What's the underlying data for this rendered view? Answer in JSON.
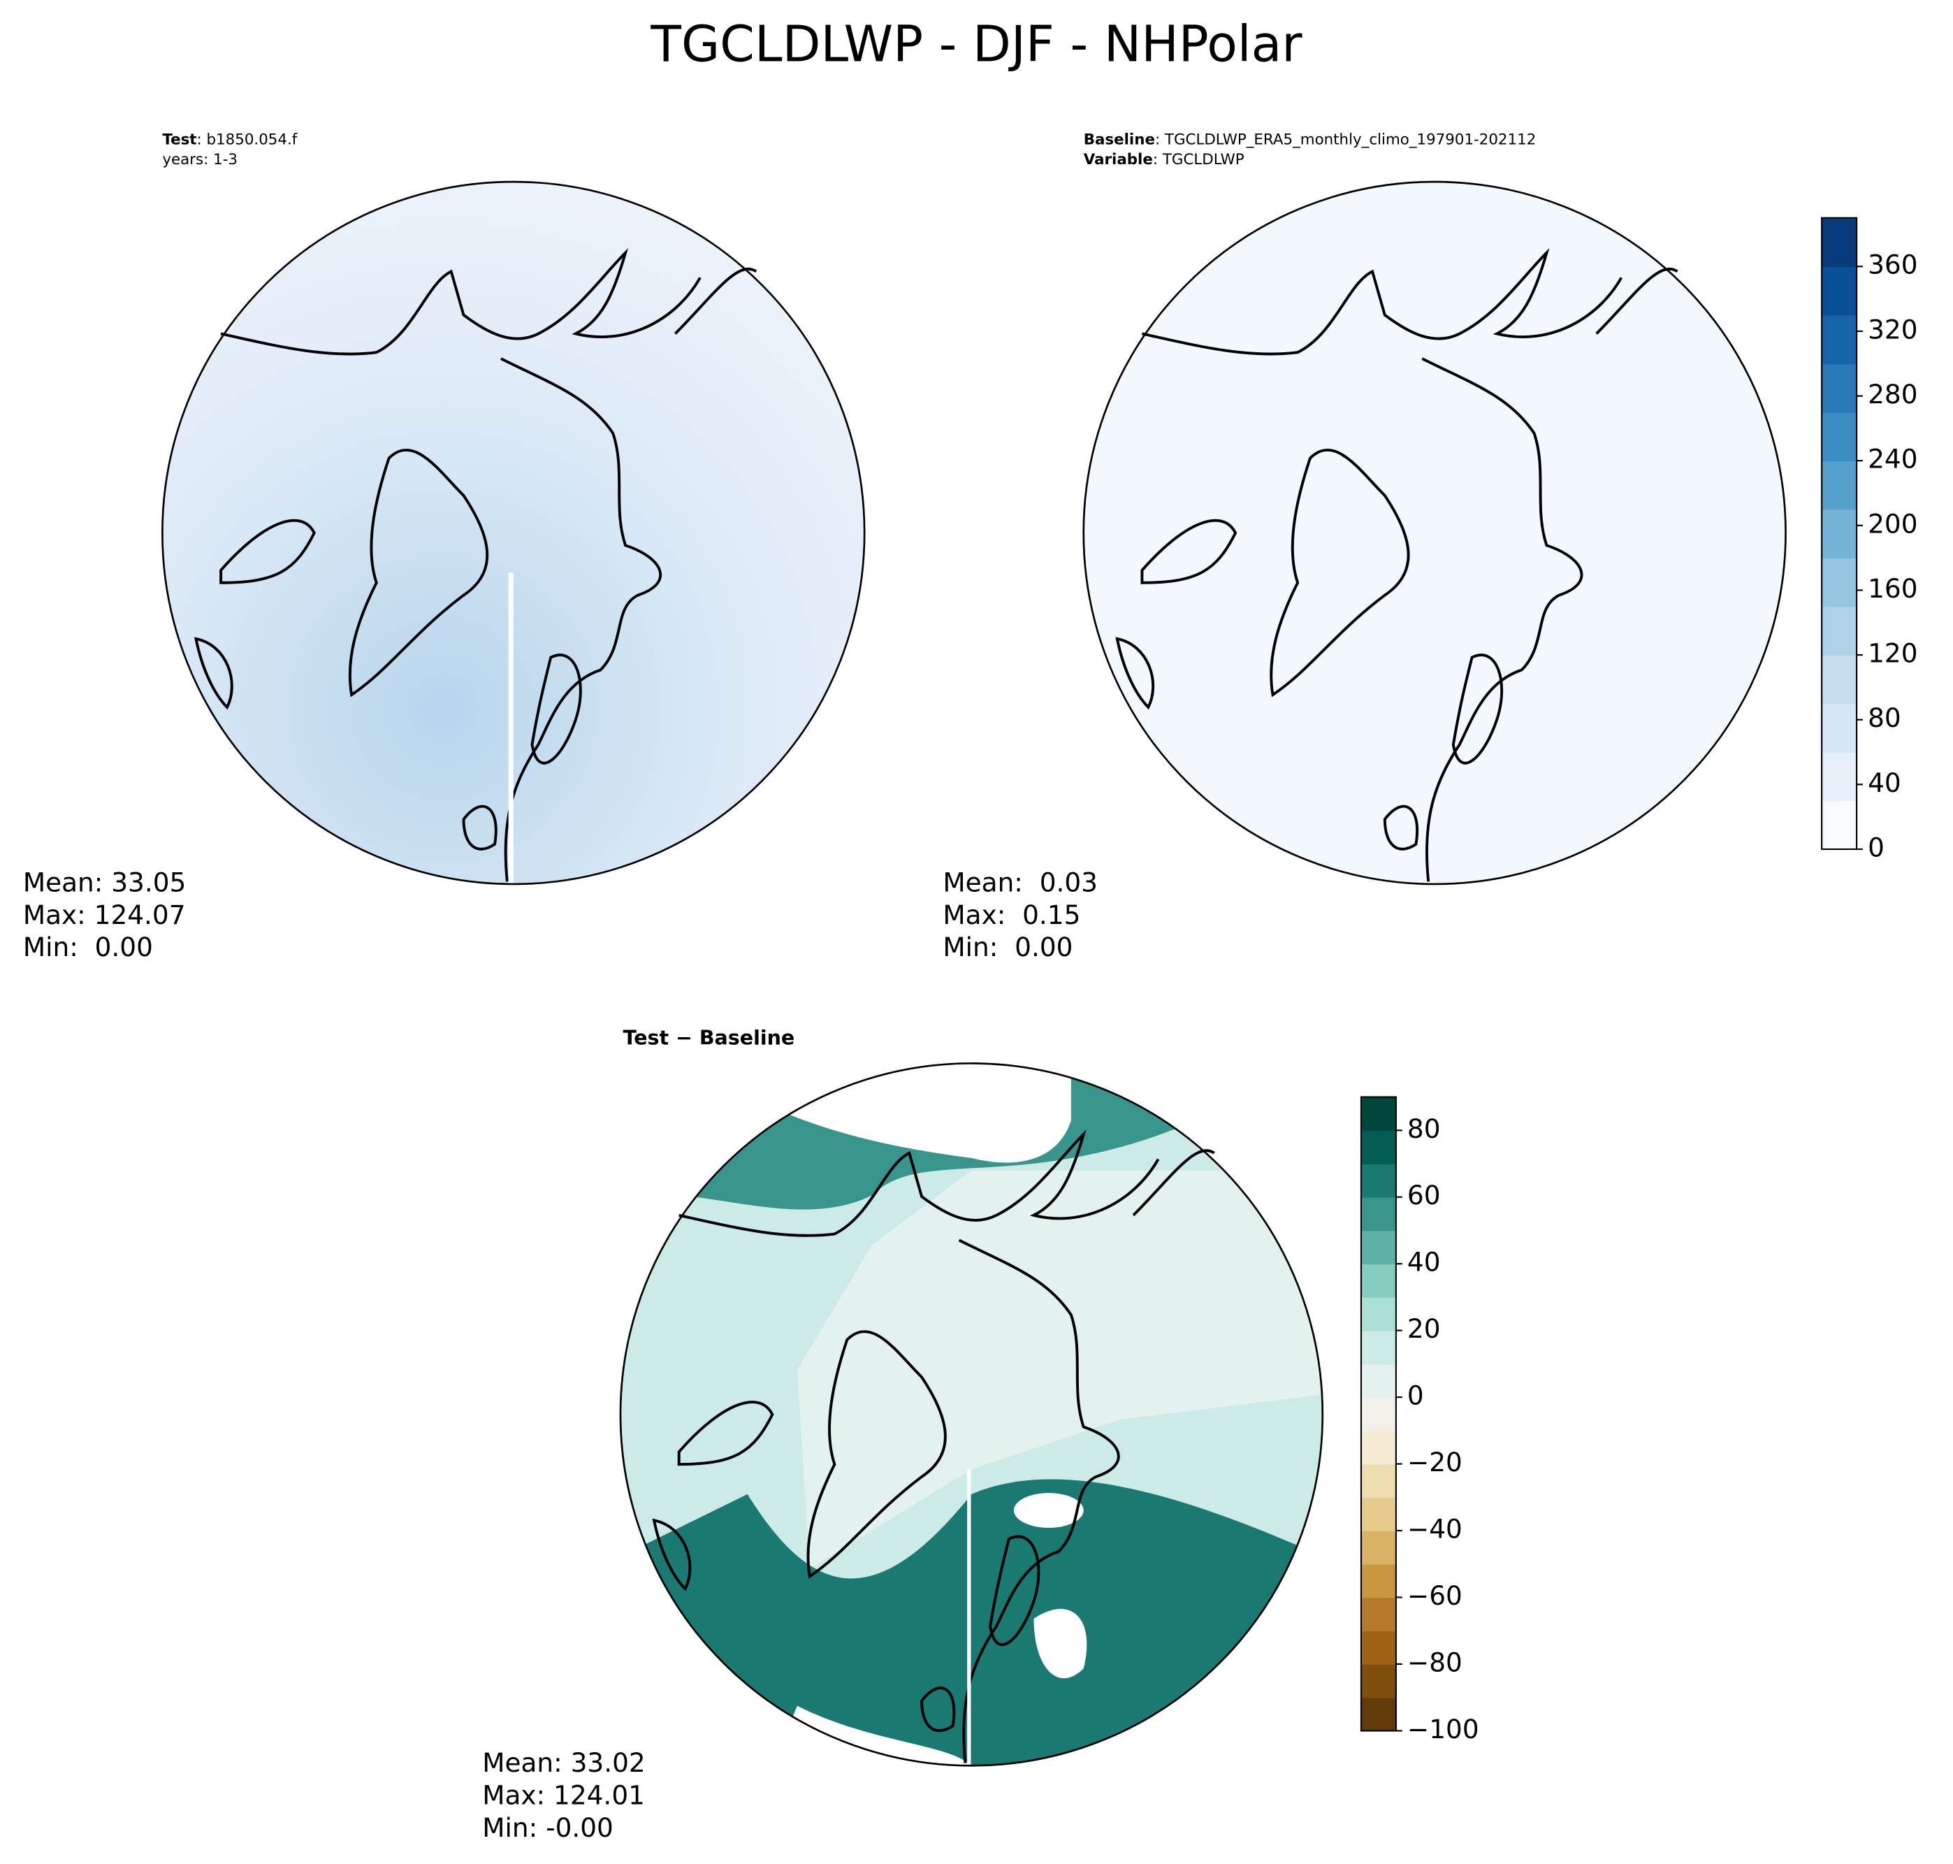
{
  "title": "TGCLDLWP - DJF - NHPolar",
  "panels": [
    {
      "subtitle": [
        {
          "key": "Test",
          "text": ": b1850.054.f"
        },
        {
          "text": "years: 1-3"
        }
      ],
      "stats": [
        "Mean: 33.05",
        "Max: 124.07",
        "Min:  0.00"
      ]
    },
    {
      "subtitle": [
        {
          "key": "Baseline",
          "text": ": TGCLDLWP_ERA5_monthly_climo_197901-202112"
        },
        {
          "key": "Variable",
          "text": ": TGCLDLWP"
        }
      ],
      "stats": [
        "Mean:  0.03",
        "Max:  0.15",
        "Min:  0.00"
      ]
    },
    {
      "subtitle": [
        {
          "key": "Test − Baseline"
        }
      ],
      "stats": [
        "Mean: 33.02",
        "Max: 124.01",
        "Min: -0.00"
      ]
    }
  ],
  "colorbars": [
    {
      "lim": [
        0,
        390
      ],
      "ticks": [
        0,
        40,
        80,
        120,
        160,
        200,
        240,
        280,
        320,
        360
      ],
      "colors": [
        "#f7fbff",
        "#e6f0f9",
        "#d7e6f5",
        "#c8ddf0",
        "#b0d2e8",
        "#94c4df",
        "#74b3d8",
        "#56a0ce",
        "#3d8dc4",
        "#2979b9",
        "#1764ab",
        "#0a5097",
        "#083b7a"
      ]
    },
    {
      "lim": [
        -100,
        90
      ],
      "ticks": [
        {
          "value": -100,
          "label": "−100"
        },
        {
          "value": -80,
          "label": "−80"
        },
        {
          "value": -60,
          "label": "−60"
        },
        {
          "value": -40,
          "label": "−40"
        },
        {
          "value": -20,
          "label": "−20"
        },
        0,
        20,
        40,
        60,
        80
      ],
      "colors": [
        "#623b09",
        "#804e0c",
        "#9d6214",
        "#b57a29",
        "#c8963f",
        "#d9b266",
        "#e6cb8c",
        "#f0deb0",
        "#f5ebd2",
        "#f2f0e8",
        "#e3f1ef",
        "#cdebe6",
        "#acdfd6",
        "#86ccbf",
        "#5eb2a6",
        "#38958b",
        "#1a7970",
        "#045e54",
        "#01463c"
      ]
    }
  ]
}
